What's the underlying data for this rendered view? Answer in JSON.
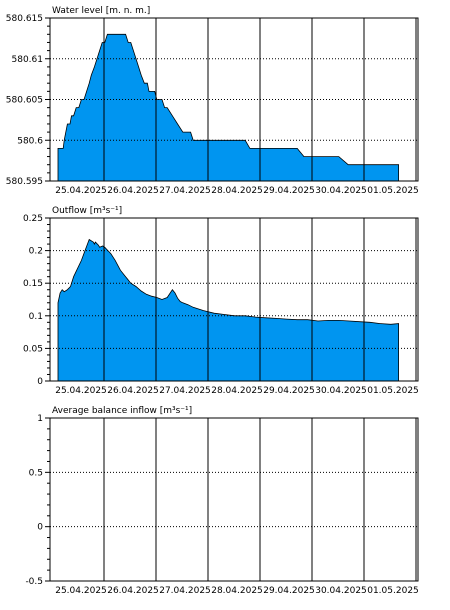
{
  "chart_data": [
    {
      "type": "area",
      "title": "Water level [m. n. m.]",
      "ylim": [
        580.595,
        580.615
      ],
      "y_ticks": [
        "580.615",
        "580.61",
        "580.605",
        "580.6",
        "580.595"
      ],
      "x_tick_labels": [
        "25.04.2025",
        "26.04.2025",
        "27.04.2025",
        "28.04.2025",
        "29.04.2025",
        "30.04.2025",
        "01.05.2025"
      ],
      "grid": true,
      "fill_color": "#0095f0",
      "series": [
        {
          "x": [
            0.0,
            0.05,
            0.08,
            0.1,
            0.12,
            0.15,
            0.18,
            0.2,
            0.23,
            0.26,
            0.3,
            0.35,
            0.4,
            0.45,
            0.5,
            0.55,
            0.6,
            0.64,
            0.7,
            0.75,
            0.8,
            0.85,
            0.9,
            0.95,
            1.0,
            1.05,
            1.1,
            1.14,
            1.2,
            1.25,
            1.3,
            1.35,
            1.4,
            1.45,
            1.5,
            1.55,
            1.6,
            1.66,
            1.72,
            1.75,
            1.78,
            1.82,
            1.86,
            1.9,
            1.95,
            2.0,
            2.05,
            2.1,
            2.2,
            2.3,
            2.4,
            2.48,
            2.55,
            2.6,
            2.7,
            2.75,
            2.8,
            2.85,
            2.9,
            3.0,
            3.1,
            3.2,
            3.3,
            3.4,
            3.5,
            3.6,
            3.69,
            3.75,
            4.0,
            4.2,
            4.4,
            4.6,
            4.73,
            4.8,
            5.0,
            5.2,
            5.4,
            5.58,
            5.7,
            6.0,
            6.2,
            6.4,
            6.55
          ],
          "y": [
            580.599,
            580.599,
            580.599,
            580.599,
            580.6,
            580.601,
            580.602,
            580.602,
            580.602,
            580.603,
            580.603,
            580.604,
            580.604,
            580.605,
            580.605,
            580.606,
            580.607,
            580.608,
            580.609,
            580.61,
            580.611,
            580.612,
            580.612,
            580.613,
            580.613,
            580.613,
            580.613,
            580.613,
            580.613,
            580.613,
            580.613,
            580.612,
            580.612,
            580.611,
            580.61,
            580.609,
            580.608,
            580.607,
            580.607,
            580.606,
            580.606,
            580.606,
            580.606,
            580.605,
            580.605,
            580.605,
            580.604,
            580.604,
            580.603,
            580.602,
            580.601,
            580.601,
            580.601,
            580.6,
            580.6,
            580.6,
            580.6,
            580.6,
            580.6,
            580.6,
            580.6,
            580.6,
            580.6,
            580.6,
            580.6,
            580.6,
            580.599,
            580.599,
            580.599,
            580.599,
            580.599,
            580.599,
            580.598,
            580.598,
            580.598,
            580.598,
            580.598,
            580.597,
            580.597,
            580.597,
            580.597,
            580.597,
            580.597
          ]
        }
      ]
    },
    {
      "type": "area",
      "title": "Outflow [m³s⁻¹]",
      "ylim": [
        0,
        0.25
      ],
      "y_ticks": [
        "0.25",
        "0.2",
        "0.15",
        "0.1",
        "0.05",
        "0"
      ],
      "x_tick_labels": [
        "25.04.2025",
        "26.04.2025",
        "27.04.2025",
        "28.04.2025",
        "29.04.2025",
        "30.04.2025",
        "01.05.2025"
      ],
      "grid": true,
      "fill_color": "#0095f0",
      "series": [
        {
          "x": [
            0.0,
            0.04,
            0.08,
            0.12,
            0.18,
            0.24,
            0.3,
            0.36,
            0.45,
            0.52,
            0.6,
            0.68,
            0.7,
            0.72,
            0.78,
            0.8,
            0.86,
            0.9,
            0.96,
            1.02,
            1.1,
            1.2,
            1.3,
            1.4,
            1.5,
            1.6,
            1.7,
            1.8,
            1.9,
            2.0,
            2.1,
            2.2,
            2.25,
            2.3,
            2.35,
            2.4,
            2.5,
            2.6,
            2.8,
            3.0,
            3.2,
            3.4,
            3.6,
            3.8,
            4.0,
            4.2,
            4.4,
            4.6,
            4.8,
            5.0,
            5.2,
            5.4,
            5.6,
            5.8,
            6.0,
            6.2,
            6.4,
            6.55
          ],
          "y": [
            0.12,
            0.135,
            0.14,
            0.137,
            0.14,
            0.145,
            0.16,
            0.17,
            0.185,
            0.2,
            0.217,
            0.213,
            0.21,
            0.213,
            0.208,
            0.205,
            0.207,
            0.205,
            0.2,
            0.195,
            0.185,
            0.17,
            0.16,
            0.15,
            0.145,
            0.138,
            0.133,
            0.13,
            0.128,
            0.125,
            0.128,
            0.14,
            0.135,
            0.127,
            0.122,
            0.12,
            0.117,
            0.113,
            0.108,
            0.104,
            0.102,
            0.1,
            0.1,
            0.098,
            0.097,
            0.096,
            0.095,
            0.094,
            0.094,
            0.092,
            0.093,
            0.093,
            0.092,
            0.091,
            0.09,
            0.088,
            0.087,
            0.088
          ]
        }
      ]
    },
    {
      "type": "line",
      "title": "Average balance inflow  [m³s⁻¹]",
      "ylim": [
        -0.5,
        1
      ],
      "y_ticks": [
        "1",
        "0.5",
        "0",
        "-0.5"
      ],
      "x_tick_labels": [
        "25.04.2025",
        "26.04.2025",
        "27.04.2025",
        "28.04.2025",
        "29.04.2025",
        "30.04.2025",
        "01.05.2025"
      ],
      "grid": true,
      "series": []
    }
  ]
}
